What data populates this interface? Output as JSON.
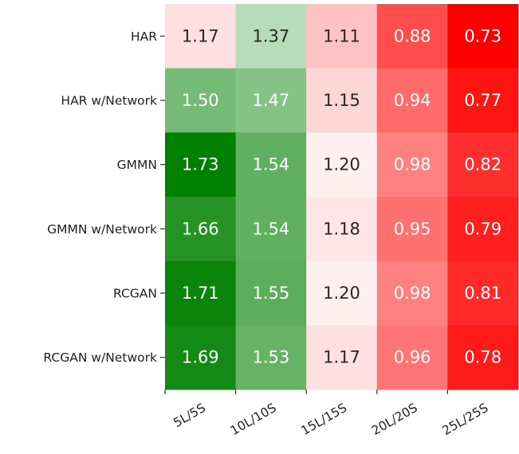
{
  "chart_data": {
    "type": "heatmap",
    "title": "",
    "xlabel": "",
    "ylabel": "",
    "x": [
      "5L/5S",
      "10L/10S",
      "15L/15S",
      "20L/20S",
      "25L/25S"
    ],
    "y": [
      "HAR",
      "HAR w/Network",
      "GMMN",
      "GMMN w/Network",
      "RCGAN",
      "RCGAN w/Network"
    ],
    "values": [
      [
        1.17,
        1.37,
        1.11,
        0.88,
        0.73
      ],
      [
        1.5,
        1.47,
        1.15,
        0.94,
        0.77
      ],
      [
        1.73,
        1.54,
        1.2,
        0.98,
        0.82
      ],
      [
        1.66,
        1.54,
        1.18,
        0.95,
        0.79
      ],
      [
        1.71,
        1.55,
        1.2,
        0.98,
        0.81
      ],
      [
        1.69,
        1.53,
        1.17,
        0.96,
        0.78
      ]
    ],
    "value_format": "0.00",
    "colormap": {
      "low": "#ff0000",
      "mid": "#ffffff",
      "high": "#008000"
    },
    "color_range": [
      0.73,
      1.73
    ],
    "colorbar": false,
    "grid": false
  }
}
